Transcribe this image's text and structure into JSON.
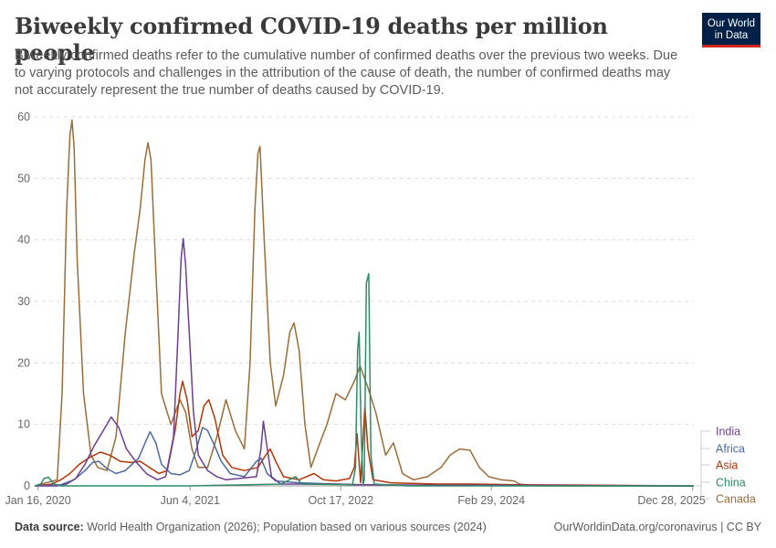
{
  "header": {
    "title": "Biweekly confirmed COVID-19 deaths per million people",
    "subtitle": "Biweekly confirmed deaths refer to the cumulative number of confirmed deaths over the previous two weeks. Due to varying protocols and challenges in the attribution of the cause of death, the number of confirmed deaths may not accurately represent the true number of deaths caused by COVID-19.",
    "logo_line1": "Our World",
    "logo_line2": "in Data"
  },
  "footer": {
    "source_label": "Data source:",
    "source_text": " World Health Organization (2026); Population based on various sources (2024)",
    "right": "OurWorldinData.org/coronavirus | CC BY"
  },
  "chart_data": {
    "type": "line",
    "title": "Biweekly confirmed COVID-19 deaths per million people",
    "xlabel": "",
    "ylabel": "",
    "x_range": [
      "2020-01-05",
      "2026-01-01"
    ],
    "ylim": [
      0,
      60
    ],
    "y_ticks": [
      0,
      10,
      20,
      30,
      40,
      50,
      60
    ],
    "x_ticks": [
      {
        "date": "2020-01-16",
        "label": "Jan 16, 2020"
      },
      {
        "date": "2021-06-04",
        "label": "Jun 4, 2021"
      },
      {
        "date": "2022-10-17",
        "label": "Oct 17, 2022"
      },
      {
        "date": "2024-02-29",
        "label": "Feb 29, 2024"
      },
      {
        "date": "2025-12-28",
        "label": "Dec 28, 2025"
      }
    ],
    "grid": "horizontal dashed",
    "legend": "right",
    "series": [
      {
        "name": "India",
        "color": "#6d3e91",
        "points": [
          [
            "2020-01-05",
            0
          ],
          [
            "2020-03-20",
            0
          ],
          [
            "2020-04-20",
            0.3
          ],
          [
            "2020-05-20",
            1.2
          ],
          [
            "2020-06-20",
            3.5
          ],
          [
            "2020-07-20",
            6.5
          ],
          [
            "2020-08-20",
            9
          ],
          [
            "2020-09-15",
            11.2
          ],
          [
            "2020-10-10",
            9.5
          ],
          [
            "2020-11-05",
            6
          ],
          [
            "2020-12-05",
            4
          ],
          [
            "2021-01-10",
            2
          ],
          [
            "2021-02-15",
            1
          ],
          [
            "2021-03-15",
            1.5
          ],
          [
            "2021-04-10",
            8
          ],
          [
            "2021-04-25",
            25
          ],
          [
            "2021-05-05",
            37
          ],
          [
            "2021-05-12",
            40.2
          ],
          [
            "2021-05-20",
            36
          ],
          [
            "2021-05-25",
            31
          ],
          [
            "2021-06-01",
            25
          ],
          [
            "2021-06-15",
            12
          ],
          [
            "2021-07-01",
            5
          ],
          [
            "2021-08-01",
            2.5
          ],
          [
            "2021-09-01",
            1.5
          ],
          [
            "2021-10-01",
            1
          ],
          [
            "2022-01-10",
            1.5
          ],
          [
            "2022-01-25",
            6
          ],
          [
            "2022-02-02",
            10.5
          ],
          [
            "2022-02-12",
            7
          ],
          [
            "2022-03-01",
            1.5
          ],
          [
            "2022-04-01",
            0.3
          ],
          [
            "2022-10-01",
            0.3
          ],
          [
            "2022-12-01",
            0.2
          ],
          [
            "2023-02-01",
            0.2
          ],
          [
            "2023-09-01",
            0.1
          ],
          [
            "2024-01-01",
            0.1
          ],
          [
            "2025-12-31",
            0
          ]
        ]
      },
      {
        "name": "Africa",
        "color": "#4c6a9c",
        "points": [
          [
            "2020-01-05",
            0
          ],
          [
            "2020-04-01",
            0.2
          ],
          [
            "2020-05-15",
            1
          ],
          [
            "2020-06-20",
            2.5
          ],
          [
            "2020-07-15",
            3.8
          ],
          [
            "2020-08-05",
            4
          ],
          [
            "2020-09-01",
            2.8
          ],
          [
            "2020-10-01",
            2
          ],
          [
            "2020-11-01",
            2.5
          ],
          [
            "2020-12-15",
            4.5
          ],
          [
            "2021-01-10",
            7.5
          ],
          [
            "2021-01-22",
            8.8
          ],
          [
            "2021-02-10",
            7
          ],
          [
            "2021-03-01",
            3.5
          ],
          [
            "2021-04-01",
            2
          ],
          [
            "2021-05-01",
            1.8
          ],
          [
            "2021-06-01",
            2.5
          ],
          [
            "2021-06-25",
            6
          ],
          [
            "2021-07-15",
            9.5
          ],
          [
            "2021-08-01",
            9
          ],
          [
            "2021-08-20",
            7
          ],
          [
            "2021-09-15",
            4
          ],
          [
            "2021-10-15",
            2
          ],
          [
            "2021-12-01",
            1.5
          ],
          [
            "2022-01-10",
            4
          ],
          [
            "2022-01-25",
            4.5
          ],
          [
            "2022-02-15",
            2
          ],
          [
            "2022-03-15",
            0.8
          ],
          [
            "2022-06-01",
            0.5
          ],
          [
            "2022-10-01",
            0.3
          ],
          [
            "2023-01-01",
            0.2
          ],
          [
            "2023-06-01",
            0.1
          ],
          [
            "2025-12-31",
            0
          ]
        ]
      },
      {
        "name": "Asia",
        "color": "#b13507",
        "points": [
          [
            "2020-01-05",
            0
          ],
          [
            "2020-03-01",
            0.3
          ],
          [
            "2020-04-01",
            1
          ],
          [
            "2020-05-01",
            2
          ],
          [
            "2020-06-01",
            3.5
          ],
          [
            "2020-07-01",
            4.5
          ],
          [
            "2020-08-10",
            5.5
          ],
          [
            "2020-09-10",
            5
          ],
          [
            "2020-10-15",
            4
          ],
          [
            "2020-11-20",
            3.8
          ],
          [
            "2020-12-20",
            4
          ],
          [
            "2021-01-20",
            3
          ],
          [
            "2021-02-20",
            2
          ],
          [
            "2021-03-20",
            2.5
          ],
          [
            "2021-04-15",
            9
          ],
          [
            "2021-05-01",
            15
          ],
          [
            "2021-05-10",
            17
          ],
          [
            "2021-05-25",
            14
          ],
          [
            "2021-06-10",
            8
          ],
          [
            "2021-07-01",
            9
          ],
          [
            "2021-07-20",
            13
          ],
          [
            "2021-08-05",
            14
          ],
          [
            "2021-08-25",
            11
          ],
          [
            "2021-09-20",
            5
          ],
          [
            "2021-10-20",
            3
          ],
          [
            "2021-12-01",
            2.5
          ],
          [
            "2022-01-15",
            3
          ],
          [
            "2022-02-10",
            5
          ],
          [
            "2022-02-25",
            6
          ],
          [
            "2022-03-15",
            4
          ],
          [
            "2022-04-10",
            1.5
          ],
          [
            "2022-06-01",
            1
          ],
          [
            "2022-07-20",
            2
          ],
          [
            "2022-08-20",
            1
          ],
          [
            "2022-10-01",
            0.8
          ],
          [
            "2022-11-15",
            1.2
          ],
          [
            "2022-12-01",
            3
          ],
          [
            "2022-12-10",
            8.5
          ],
          [
            "2022-12-22",
            0.5
          ],
          [
            "2022-12-28",
            6
          ],
          [
            "2023-01-05",
            13
          ],
          [
            "2023-01-15",
            6
          ],
          [
            "2023-02-01",
            1
          ],
          [
            "2023-04-01",
            0.5
          ],
          [
            "2023-09-01",
            0.3
          ],
          [
            "2024-01-01",
            0.3
          ],
          [
            "2024-06-01",
            0.2
          ],
          [
            "2025-12-31",
            0
          ]
        ]
      },
      {
        "name": "China",
        "color": "#2f8b67",
        "points": [
          [
            "2020-01-05",
            0
          ],
          [
            "2020-01-25",
            0.3
          ],
          [
            "2020-02-05",
            1.2
          ],
          [
            "2020-02-20",
            1.4
          ],
          [
            "2020-03-10",
            0.3
          ],
          [
            "2020-04-01",
            0
          ],
          [
            "2021-06-01",
            0
          ],
          [
            "2022-04-01",
            0.3
          ],
          [
            "2022-05-20",
            1.5
          ],
          [
            "2022-06-10",
            0.3
          ],
          [
            "2022-11-25",
            0.2
          ],
          [
            "2022-12-05",
            3
          ],
          [
            "2022-12-12",
            22
          ],
          [
            "2022-12-17",
            25
          ],
          [
            "2022-12-24",
            8
          ],
          [
            "2022-12-30",
            0.2
          ],
          [
            "2023-01-03",
            1
          ],
          [
            "2023-01-10",
            33
          ],
          [
            "2023-01-18",
            34.5
          ],
          [
            "2023-01-25",
            5
          ],
          [
            "2023-02-05",
            0.3
          ],
          [
            "2023-06-01",
            0
          ],
          [
            "2025-12-31",
            0
          ]
        ]
      },
      {
        "name": "Canada",
        "color": "#996d39",
        "points": [
          [
            "2020-01-05",
            0
          ],
          [
            "2020-03-20",
            1
          ],
          [
            "2020-04-05",
            15
          ],
          [
            "2020-04-20",
            45
          ],
          [
            "2020-05-01",
            57
          ],
          [
            "2020-05-08",
            59.5
          ],
          [
            "2020-05-15",
            55
          ],
          [
            "2020-05-25",
            37
          ],
          [
            "2020-06-15",
            15
          ],
          [
            "2020-07-10",
            5
          ],
          [
            "2020-08-01",
            3
          ],
          [
            "2020-09-01",
            2.5
          ],
          [
            "2020-10-01",
            8
          ],
          [
            "2020-11-01",
            25
          ],
          [
            "2020-12-01",
            38
          ],
          [
            "2020-12-20",
            45
          ],
          [
            "2021-01-05",
            53
          ],
          [
            "2021-01-15",
            55.8
          ],
          [
            "2021-01-25",
            53
          ],
          [
            "2021-02-10",
            35
          ],
          [
            "2021-03-01",
            15
          ],
          [
            "2021-04-01",
            10
          ],
          [
            "2021-05-01",
            14
          ],
          [
            "2021-05-20",
            12
          ],
          [
            "2021-06-10",
            6
          ],
          [
            "2021-07-01",
            3
          ],
          [
            "2021-08-01",
            3
          ],
          [
            "2021-09-01",
            8
          ],
          [
            "2021-10-01",
            14
          ],
          [
            "2021-11-01",
            9
          ],
          [
            "2021-12-01",
            6
          ],
          [
            "2021-12-20",
            20
          ],
          [
            "2022-01-05",
            45
          ],
          [
            "2022-01-15",
            54
          ],
          [
            "2022-01-22",
            55.2
          ],
          [
            "2022-02-05",
            40
          ],
          [
            "2022-02-25",
            20
          ],
          [
            "2022-03-15",
            13
          ],
          [
            "2022-04-10",
            18
          ],
          [
            "2022-05-01",
            25
          ],
          [
            "2022-05-15",
            26.5
          ],
          [
            "2022-06-01",
            22
          ],
          [
            "2022-06-20",
            10
          ],
          [
            "2022-07-10",
            3
          ],
          [
            "2022-08-01",
            6
          ],
          [
            "2022-09-01",
            10
          ],
          [
            "2022-10-01",
            15
          ],
          [
            "2022-11-01",
            14
          ],
          [
            "2022-12-01",
            17
          ],
          [
            "2022-12-20",
            19.5
          ],
          [
            "2023-01-15",
            16
          ],
          [
            "2023-02-10",
            12
          ],
          [
            "2023-03-15",
            5
          ],
          [
            "2023-04-10",
            7
          ],
          [
            "2023-05-10",
            2
          ],
          [
            "2023-06-15",
            1
          ],
          [
            "2023-08-01",
            1.5
          ],
          [
            "2023-09-15",
            3
          ],
          [
            "2023-10-15",
            5
          ],
          [
            "2023-11-15",
            6
          ],
          [
            "2023-12-20",
            5.8
          ],
          [
            "2024-01-20",
            3
          ],
          [
            "2024-02-20",
            1.5
          ],
          [
            "2024-04-01",
            1
          ],
          [
            "2024-05-15",
            0.8
          ],
          [
            "2024-06-01",
            0.3
          ],
          [
            "2024-08-01",
            0
          ],
          [
            "2025-12-31",
            0
          ]
        ]
      }
    ]
  }
}
